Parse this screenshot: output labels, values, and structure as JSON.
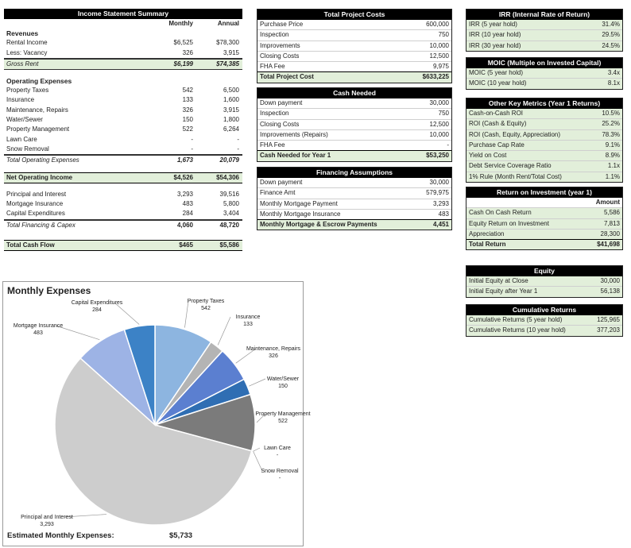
{
  "income": {
    "title": "Income Statement Summary",
    "col_monthly": "Monthly",
    "col_annual": "Annual",
    "revenues_label": "Revenues",
    "revenues": [
      {
        "label": "Rental Income",
        "monthly": "$6,525",
        "annual": "$78,300"
      },
      {
        "label": "Less: Vacancy",
        "monthly": "326",
        "annual": "3,915"
      }
    ],
    "gross_rent": {
      "label": "Gross Rent",
      "monthly": "$6,199",
      "annual": "$74,385"
    },
    "opex_label": "Operating Expenses",
    "opex": [
      {
        "label": "Property Taxes",
        "monthly": "542",
        "annual": "6,500"
      },
      {
        "label": "Insurance",
        "monthly": "133",
        "annual": "1,600"
      },
      {
        "label": "Maintenance, Repairs",
        "monthly": "326",
        "annual": "3,915"
      },
      {
        "label": "Water/Sewer",
        "monthly": "150",
        "annual": "1,800"
      },
      {
        "label": "Property Management",
        "monthly": "522",
        "annual": "6,264"
      },
      {
        "label": "Lawn Care",
        "monthly": "-",
        "annual": "-"
      },
      {
        "label": "Snow Removal",
        "monthly": "-",
        "annual": "-"
      }
    ],
    "total_opex": {
      "label": "Total Operating Expenses",
      "monthly": "1,673",
      "annual": "20,079"
    },
    "noi": {
      "label": "Net Operating Income",
      "monthly": "$4,526",
      "annual": "$54,306"
    },
    "financing": [
      {
        "label": "Principal and Interest",
        "monthly": "3,293",
        "annual": "39,516"
      },
      {
        "label": "Mortgage Insurance",
        "monthly": "483",
        "annual": "5,800"
      },
      {
        "label": "Capital Expenditures",
        "monthly": "284",
        "annual": "3,404"
      }
    ],
    "total_financing": {
      "label": "Total Financing & Capex",
      "monthly": "4,060",
      "annual": "48,720"
    },
    "cash_flow": {
      "label": "Total Cash Flow",
      "monthly": "$465",
      "annual": "$5,586"
    }
  },
  "project_costs": {
    "title": "Total Project Costs",
    "rows": [
      {
        "label": "Purchase Price",
        "value": "600,000"
      },
      {
        "label": "Inspection",
        "value": "750"
      },
      {
        "label": "Improvements",
        "value": "10,000"
      },
      {
        "label": "Closing Costs",
        "value": "12,500"
      },
      {
        "label": "FHA Fee",
        "value": "9,975"
      }
    ],
    "total": {
      "label": "Total Project Cost",
      "value": "$633,225"
    }
  },
  "cash_needed": {
    "title": "Cash Needed",
    "rows": [
      {
        "label": "Down payment",
        "value": "30,000"
      },
      {
        "label": "Inspection",
        "value": "750"
      },
      {
        "label": "Closing Costs",
        "value": "12,500"
      },
      {
        "label": "Improvements (Repairs)",
        "value": "10,000"
      },
      {
        "label": "FHA Fee",
        "value": "-"
      }
    ],
    "total": {
      "label": "Cash Needed for Year 1",
      "value": "$53,250"
    }
  },
  "financing_assumptions": {
    "title": "Financing Assumptions",
    "rows": [
      {
        "label": "Down payment",
        "value": "30,000"
      },
      {
        "label": "Finance Amt",
        "value": "579,975"
      },
      {
        "label": "Monthly Mortgage Payment",
        "value": "3,293"
      },
      {
        "label": "Monthly Mortgage Insurance",
        "value": "483"
      }
    ],
    "total": {
      "label": "Monthly Mortgage & Escrow Payments",
      "value": "4,451"
    }
  },
  "irr": {
    "title": "IRR (Internal Rate of Return)",
    "rows": [
      {
        "label": "IRR (5 year hold)",
        "value": "31.4%"
      },
      {
        "label": "IRR (10 year hold)",
        "value": "29.5%"
      },
      {
        "label": "IRR (30 year hold)",
        "value": "24.5%"
      }
    ]
  },
  "moic": {
    "title": "MOIC (Multiple on Invested Capital)",
    "rows": [
      {
        "label": "MOIC (5 year hold)",
        "value": "3.4x"
      },
      {
        "label": "MOIC (10 year hold)",
        "value": "8.1x"
      }
    ]
  },
  "key_metrics": {
    "title": "Other Key Metrics (Year 1 Returns)",
    "rows": [
      {
        "label": "Cash-on-Cash ROI",
        "value": "10.5%"
      },
      {
        "label": "ROI (Cash & Equity)",
        "value": "25.2%"
      },
      {
        "label": "ROI (Cash, Equity, Appreciation)",
        "value": "78.3%"
      },
      {
        "label": "Purchase Cap Rate",
        "value": "9.1%"
      },
      {
        "label": "Yield on Cost",
        "value": "8.9%"
      },
      {
        "label": "Debt Service Coverage Ratio",
        "value": "1.1x"
      },
      {
        "label": "1% Rule (Month Rent/Total Cost)",
        "value": "1.1%"
      }
    ]
  },
  "roi": {
    "title": "Return on Investment (year 1)",
    "amount_header": "Amount",
    "rows": [
      {
        "label": "Cash On Cash Return",
        "value": "5,586"
      },
      {
        "label": "Equity Return on Investment",
        "value": "7,813"
      },
      {
        "label": "Appreciation",
        "value": "28,300"
      }
    ],
    "total": {
      "label": "Total Return",
      "value": "$41,698"
    }
  },
  "equity": {
    "title": "Equity",
    "rows": [
      {
        "label": "Initial Equity at Close",
        "value": "30,000"
      },
      {
        "label": "Initial Equity after Year 1",
        "value": "56,138"
      }
    ]
  },
  "cumulative": {
    "title": "Cumulative Returns",
    "rows": [
      {
        "label": "Cumulative Returns (5 year hold)",
        "value": "125,965"
      },
      {
        "label": "Cumulative Returns (10 year hold)",
        "value": "377,203"
      }
    ]
  },
  "chart_data": {
    "type": "pie",
    "title": "Monthly Expenses",
    "slices": [
      {
        "label": "Property Taxes",
        "display": "542",
        "value": 542,
        "color": "#8db5e0"
      },
      {
        "label": "Insurance",
        "display": "133",
        "value": 133,
        "color": "#b4b4b4"
      },
      {
        "label": "Maintenance, Repairs",
        "display": "326",
        "value": 326,
        "color": "#5b7fd0"
      },
      {
        "label": "Water/Sewer",
        "display": "150",
        "value": 150,
        "color": "#2f6eb3"
      },
      {
        "label": "Property Management",
        "display": "522",
        "value": 522,
        "color": "#7b7b7b"
      },
      {
        "label": "Lawn Care",
        "display": "-",
        "value": 0,
        "color": "#9e9e9e"
      },
      {
        "label": "Snow Removal",
        "display": "-",
        "value": 0,
        "color": "#a8a8a8"
      },
      {
        "label": "Principal and Interest",
        "display": "3,293",
        "value": 3293,
        "color": "#cdcdcd"
      },
      {
        "label": "Mortgage Insurance",
        "display": "483",
        "value": 483,
        "color": "#9db3e5"
      },
      {
        "label": "Capital Expenditures",
        "display": "284",
        "value": 284,
        "color": "#3c82c6"
      }
    ],
    "footer_label": "Estimated Monthly Expenses:",
    "footer_value": "$5,733"
  }
}
